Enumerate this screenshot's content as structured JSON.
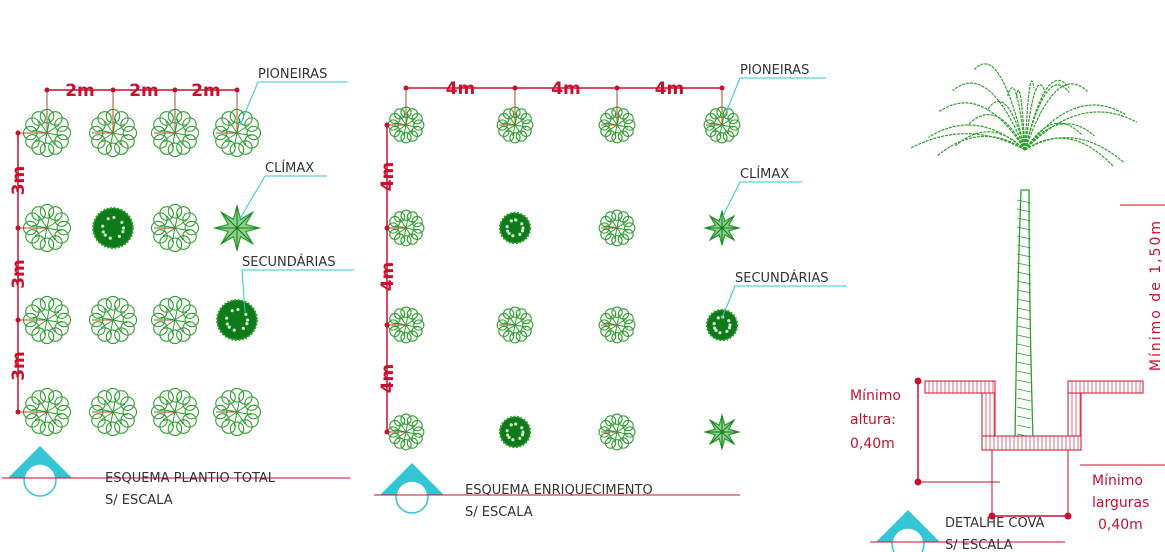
{
  "panels": [
    {
      "title": "ESQUEMA PLANTIO TOTAL",
      "subtitle": "S/ ESCALA",
      "x_spacing": [
        "2m",
        "2m",
        "2m"
      ],
      "y_spacing": [
        "3m",
        "3m",
        "3m"
      ],
      "labels": [
        "PIONEIRAS",
        "CLÍMAX",
        "SECUNDÁRIAS"
      ]
    },
    {
      "title": "ESQUEMA ENRIQUECIMENTO",
      "subtitle": "S/ ESCALA",
      "x_spacing": [
        "4m",
        "4m",
        "4m"
      ],
      "y_spacing": [
        "4m",
        "4m",
        "4m"
      ],
      "labels": [
        "PIONEIRAS",
        "CLÍMAX",
        "SECUNDÁRIAS"
      ]
    },
    {
      "title": "DETALHE COVA",
      "subtitle": "S/ ESCALA",
      "height_note": [
        "Mínimo",
        "altura:",
        "0,40m"
      ],
      "width_note": [
        "Mínimo",
        "larguras",
        "0,40m"
      ],
      "trunk_note": "Mínimo de 1,50m"
    }
  ]
}
